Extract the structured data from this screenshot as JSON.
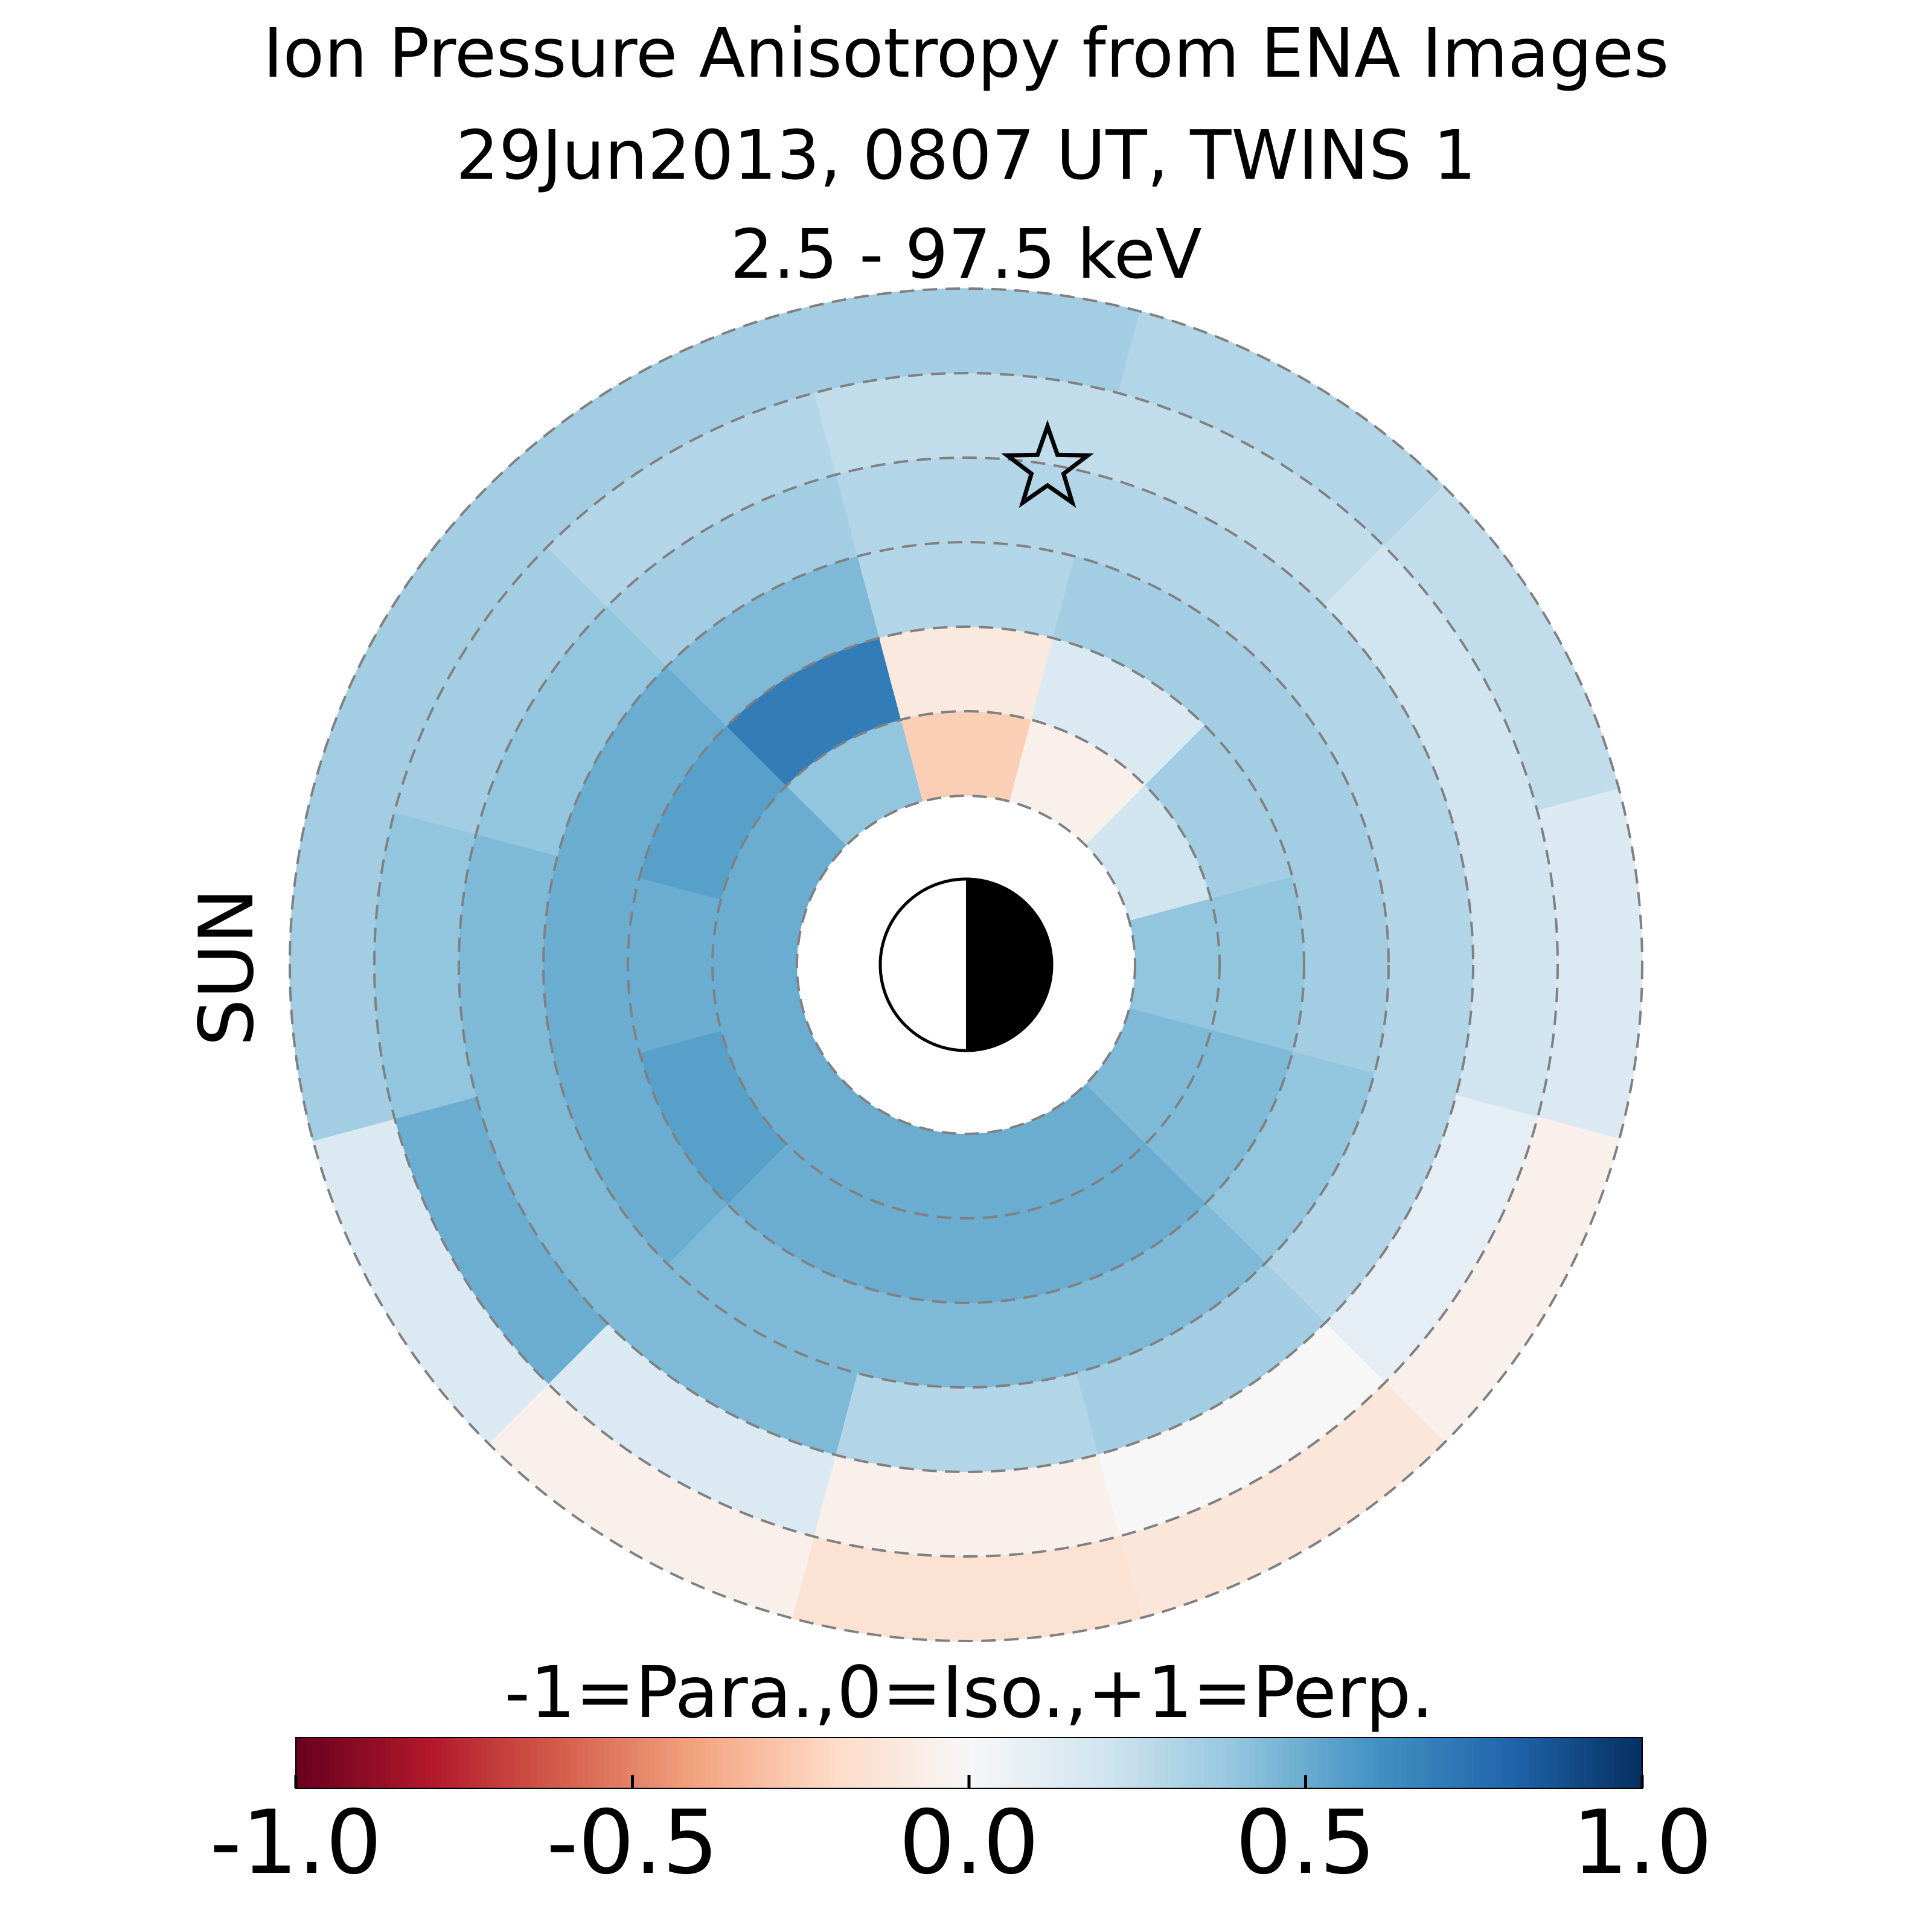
{
  "chart_data": {
    "type": "polar_heatmap",
    "title": [
      "Ion Pressure Anisotropy from  ENA Images",
      "29Jun2013, 0807 UT,  TWINS 1",
      "2.5 - 97.5 keV"
    ],
    "sun_label": "SUN",
    "sun_color": "#ffa500",
    "colorbar_label": "-1=Para.,0=Iso.,+1=Perp.",
    "clim": [
      -1,
      1
    ],
    "cticks": [
      {
        "value": -1,
        "label": "-1.0"
      },
      {
        "value": -0.5,
        "label": "-0.5"
      },
      {
        "value": 0,
        "label": "0.0"
      },
      {
        "value": 0.5,
        "label": "0.5"
      },
      {
        "value": 1,
        "label": "1.0"
      }
    ],
    "colormap": [
      "#67001f",
      "#b2182b",
      "#d6604d",
      "#f4a582",
      "#fddbc7",
      "#f7f7f7",
      "#d1e5f0",
      "#92c5de",
      "#4393c3",
      "#2166ac",
      "#053061"
    ],
    "values": [
      [
        -0.25,
        -0.05,
        0.2,
        0.4,
        0.45,
        0.5,
        0.5,
        0.5,
        0.5,
        0.5,
        0.5,
        0.4
      ],
      [
        -0.1,
        0.15,
        0.35,
        0.4,
        0.45,
        0.5,
        0.5,
        0.5,
        0.55,
        0.5,
        0.55,
        0.7
      ],
      [
        0.3,
        0.35,
        0.35,
        0.35,
        0.4,
        0.45,
        0.45,
        0.45,
        0.5,
        0.5,
        0.5,
        0.45
      ],
      [
        0.3,
        0.3,
        0.3,
        0.3,
        0.3,
        0.35,
        0.3,
        0.45,
        0.45,
        0.45,
        0.4,
        0.35
      ],
      [
        0.25,
        0.25,
        0.2,
        0.2,
        0.1,
        0.0,
        -0.05,
        0.15,
        0.5,
        0.4,
        0.35,
        0.3
      ],
      [
        0.35,
        0.3,
        0.25,
        0.15,
        -0.05,
        -0.12,
        -0.15,
        -0.05,
        0.15,
        0.35,
        0.35,
        0.35
      ]
    ]
  }
}
